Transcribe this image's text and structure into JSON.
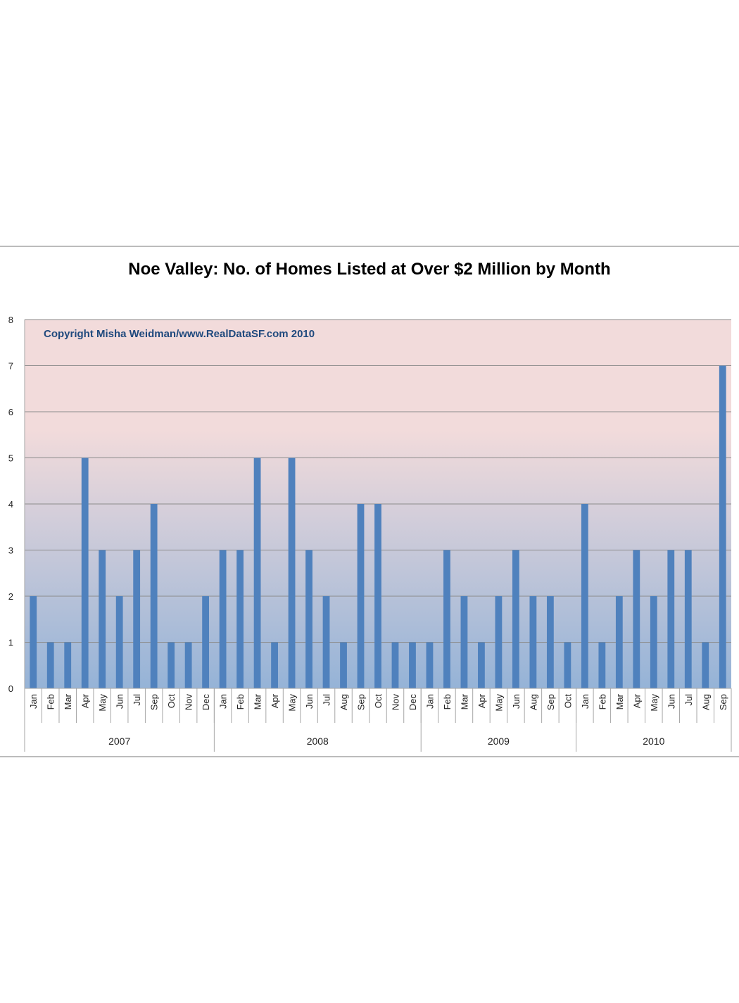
{
  "chart_data": {
    "type": "bar",
    "title": "Noe Valley:  No. of Homes Listed at Over $2 Million by Month",
    "annotation": "Copyright Misha Weidman/www.RealDataSF.com 2010",
    "xlabel": "",
    "ylabel": "",
    "ylim": [
      0,
      8
    ],
    "yticks": [
      "0",
      "1",
      "2",
      "3",
      "4",
      "5",
      "6",
      "7",
      "8"
    ],
    "grid": true,
    "legend": "none",
    "colors": {
      "bar": "#4f81bd",
      "plot_top": "#f2dbdb",
      "plot_bottom": "#95b3d7",
      "grid": "#8c8c8c",
      "frame": "#a6a6a6"
    },
    "groups": [
      {
        "year": "2007",
        "months": [
          "Jan",
          "Feb",
          "Mar",
          "Apr",
          "May",
          "Jun",
          "Jul",
          "Sep",
          "Oct",
          "Nov",
          "Dec"
        ],
        "values": [
          2,
          1,
          1,
          5,
          3,
          2,
          3,
          4,
          1,
          1,
          2
        ]
      },
      {
        "year": "2008",
        "months": [
          "Jan",
          "Feb",
          "Mar",
          "Apr",
          "May",
          "Jun",
          "Jul",
          "Aug",
          "Sep",
          "Oct",
          "Nov",
          "Dec"
        ],
        "values": [
          3,
          3,
          5,
          1,
          5,
          3,
          2,
          1,
          4,
          4,
          1,
          1
        ]
      },
      {
        "year": "2009",
        "months": [
          "Jan",
          "Feb",
          "Mar",
          "Apr",
          "May",
          "Jun",
          "Aug",
          "Sep",
          "Oct"
        ],
        "values": [
          1,
          3,
          2,
          1,
          2,
          3,
          2,
          2,
          1
        ]
      },
      {
        "year": "2010",
        "months": [
          "Jan",
          "Feb",
          "Mar",
          "Apr",
          "May",
          "Jun",
          "Jul",
          "Aug",
          "Sep"
        ],
        "values": [
          4,
          1,
          2,
          3,
          2,
          3,
          3,
          1,
          7
        ]
      }
    ]
  }
}
